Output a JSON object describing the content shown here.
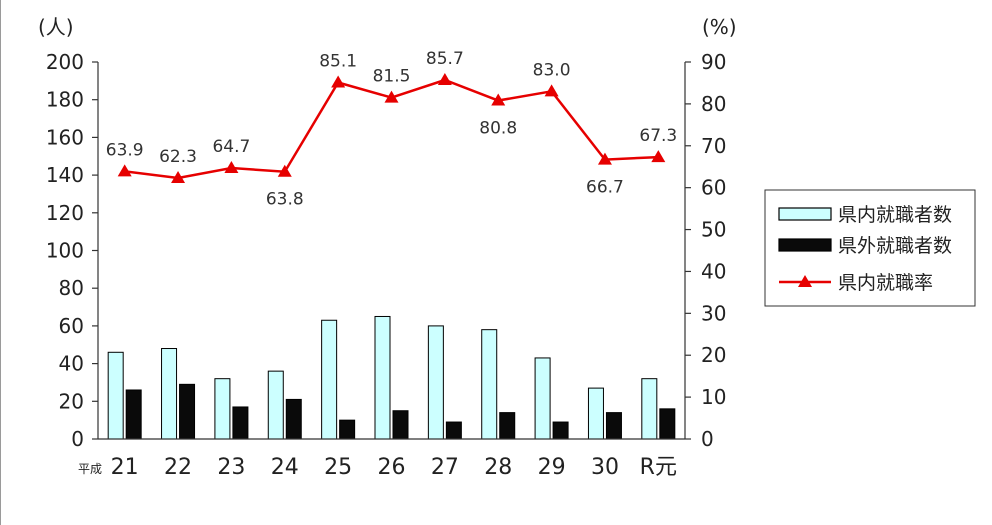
{
  "chart_data": {
    "type": "bar",
    "categories": [
      "21",
      "22",
      "23",
      "24",
      "25",
      "26",
      "27",
      "28",
      "29",
      "30",
      "R元"
    ],
    "era_label": "平成",
    "left_axis": {
      "unit_label": "(人)",
      "min": 0,
      "max": 200,
      "step": 20
    },
    "right_axis": {
      "unit_label": "(%)",
      "min": 0,
      "max": 90,
      "step": 10
    },
    "series": [
      {
        "name": "県内就職者数",
        "kind": "bar",
        "axis": "left",
        "color": "#ccffff",
        "stroke": "#000000",
        "values": [
          46,
          48,
          32,
          36,
          63,
          65,
          60,
          58,
          43,
          27,
          32
        ]
      },
      {
        "name": "県外就職者数",
        "kind": "bar",
        "axis": "left",
        "color": "#0a0a0a",
        "stroke": "#000000",
        "values": [
          26,
          29,
          17,
          21,
          10,
          15,
          9,
          14,
          9,
          14,
          16
        ]
      },
      {
        "name": "県内就職率",
        "kind": "line",
        "axis": "right",
        "color": "#e60000",
        "marker": "triangle",
        "values": [
          63.9,
          62.3,
          64.7,
          63.8,
          85.1,
          81.5,
          85.7,
          80.8,
          83.0,
          66.7,
          67.3
        ],
        "labels": [
          "63.9",
          "62.3",
          "64.7",
          "63.8",
          "85.1",
          "81.5",
          "85.7",
          "80.8",
          "83.0",
          "66.7",
          "67.3"
        ]
      }
    ],
    "legend_position": "right",
    "grid": false
  }
}
